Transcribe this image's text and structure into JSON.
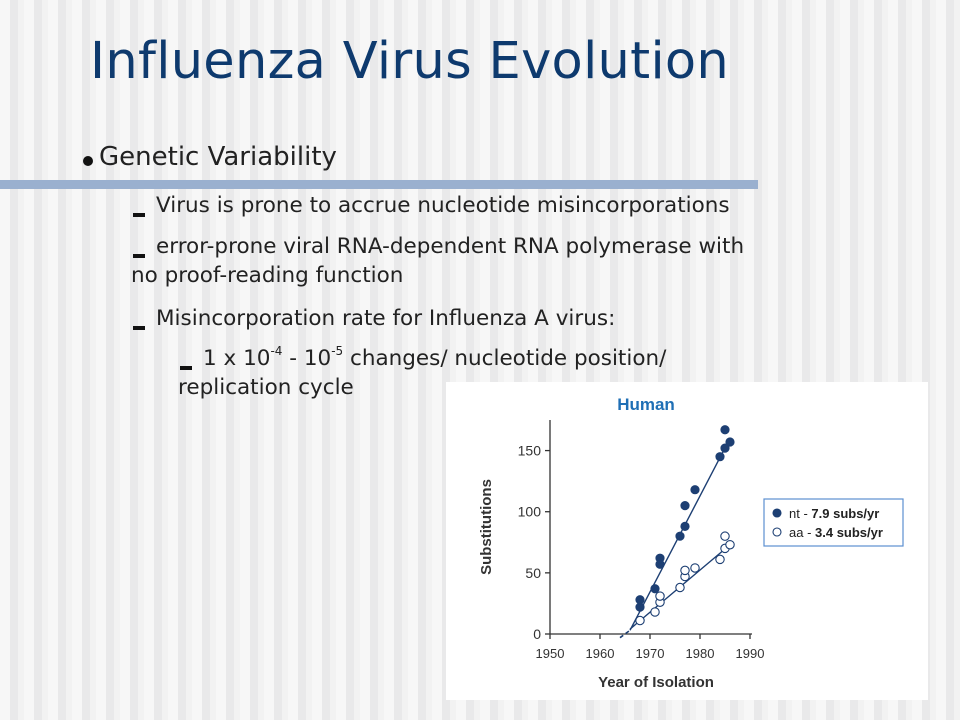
{
  "slide": {
    "title": "Influenza Virus Evolution",
    "bullet_main": "Genetic Variability",
    "sub1": "Virus is prone to accrue nucleotide misincorporations",
    "sub2_line1": "error-prone viral RNA-dependent RNA polymerase with",
    "sub2_line2": "no proof-reading function",
    "sub3": "Misincorporation rate for Influenza A virus:",
    "sub4_a": "1 x 10",
    "sub4_exp1": "-4",
    "sub4_b": " - 10",
    "sub4_exp2": "-5",
    "sub4_c": " changes/ nucleotide position/",
    "sub4_line2": "replication cycle"
  },
  "colors": {
    "title": "#0e3a6e",
    "rule": "#9ab0cf",
    "chart_title": "#1f6fb5",
    "series": "#1d3f73",
    "legend_border": "#5c8fd0"
  },
  "chart_data": {
    "type": "scatter",
    "title": "Human",
    "xlabel": "Year of Isolation",
    "ylabel": "Substitutions",
    "xlim": [
      1950,
      1990
    ],
    "ylim": [
      0,
      175
    ],
    "xticks": [
      1950,
      1960,
      1970,
      1980,
      1990
    ],
    "yticks": [
      0,
      50,
      100,
      150
    ],
    "legend": {
      "placement": "right"
    },
    "series": [
      {
        "name": "nt",
        "legend_prefix": "nt - ",
        "legend_rate": "7.9 subs/yr",
        "marker": "filled",
        "points": [
          [
            1968,
            22
          ],
          [
            1968,
            28
          ],
          [
            1971,
            37
          ],
          [
            1972,
            62
          ],
          [
            1972,
            57
          ],
          [
            1976,
            80
          ],
          [
            1977,
            88
          ],
          [
            1977,
            105
          ],
          [
            1979,
            118
          ],
          [
            1984,
            145
          ],
          [
            1985,
            167
          ],
          [
            1985,
            152
          ],
          [
            1986,
            157
          ]
        ],
        "fit": [
          [
            1966,
            3
          ],
          [
            1986,
            160
          ]
        ]
      },
      {
        "name": "aa",
        "legend_prefix": "aa - ",
        "legend_rate": "3.4 subs/yr",
        "marker": "open",
        "points": [
          [
            1968,
            11
          ],
          [
            1971,
            18
          ],
          [
            1972,
            26
          ],
          [
            1972,
            31
          ],
          [
            1976,
            38
          ],
          [
            1977,
            47
          ],
          [
            1977,
            52
          ],
          [
            1979,
            54
          ],
          [
            1984,
            61
          ],
          [
            1985,
            70
          ],
          [
            1985,
            80
          ],
          [
            1986,
            73
          ]
        ],
        "fit": [
          [
            1966,
            4
          ],
          [
            1986,
            73
          ]
        ],
        "extrapolation": [
          [
            1964,
            -3
          ],
          [
            1966,
            3
          ]
        ]
      }
    ]
  }
}
